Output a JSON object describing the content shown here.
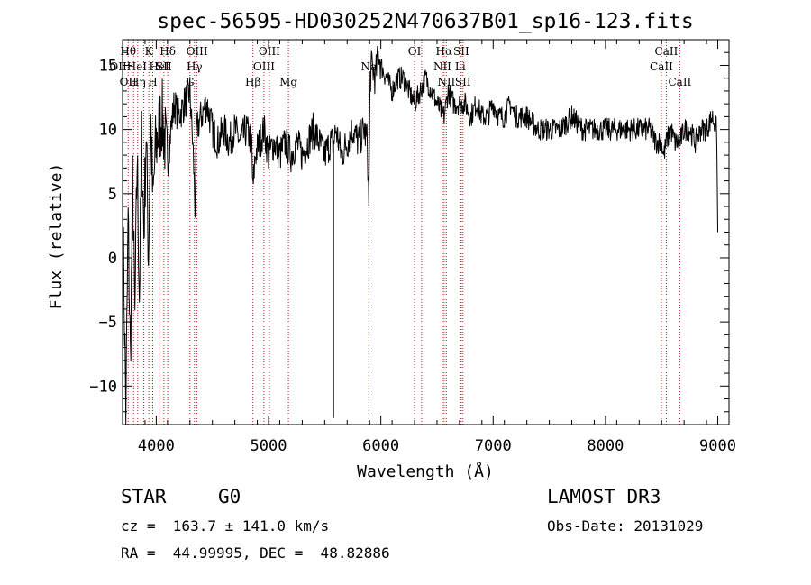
{
  "chart_data": {
    "type": "line",
    "title": "spec-56595-HD030252N470637B01_sp16-123.fits",
    "xlabel": "Wavelength (Å)",
    "ylabel": "Flux (relative)",
    "xlim": [
      3700,
      9100
    ],
    "ylim": [
      -13,
      17
    ],
    "xticks": [
      4000,
      5000,
      6000,
      7000,
      8000,
      9000
    ],
    "yticks": [
      -10,
      -5,
      0,
      5,
      10,
      15
    ],
    "grid": false,
    "line_color": "#000000",
    "marker_color": "#b22222",
    "series": [
      {
        "x": [
          3705,
          3730,
          3750,
          3770,
          3790,
          3810,
          3830,
          3850,
          3870,
          3890,
          3910,
          3930,
          3950,
          3970,
          3990,
          4020,
          4050,
          4080,
          4100,
          4130,
          4160,
          4200,
          4250,
          4300,
          4330,
          4345,
          4360,
          4400,
          4450,
          4500,
          4550,
          4600,
          4650,
          4700,
          4750,
          4800,
          4850,
          4861,
          4880,
          4920,
          4960,
          5000,
          5050,
          5100,
          5150,
          5200,
          5250,
          5300,
          5350,
          5400,
          5450,
          5500,
          5550,
          5580,
          5600,
          5650,
          5700,
          5750,
          5800,
          5850,
          5880,
          5893,
          5905,
          5920,
          5950,
          5980,
          6000,
          6050,
          6100,
          6150,
          6200,
          6250,
          6300,
          6350,
          6400,
          6450,
          6500,
          6563,
          6600,
          6650,
          6700,
          6750,
          6800,
          6850,
          6900,
          6950,
          7000,
          7050,
          7100,
          7150,
          7200,
          7300,
          7400,
          7500,
          7600,
          7700,
          7800,
          7900,
          8000,
          8100,
          8200,
          8300,
          8400,
          8450,
          8498,
          8520,
          8542,
          8580,
          8620,
          8662,
          8700,
          8750,
          8800,
          8850,
          8900,
          8950,
          8990,
          9000
        ],
        "y": [
          2,
          -12,
          3,
          -8,
          6,
          -5,
          8,
          -3,
          9,
          2,
          10,
          0,
          11,
          4,
          8,
          10,
          11,
          9,
          7,
          10,
          12,
          11,
          12,
          13,
          8,
          4,
          10,
          11,
          12,
          10,
          9,
          10,
          9,
          10,
          9,
          10,
          9,
          5,
          8,
          9,
          10,
          8,
          9,
          8,
          9,
          8,
          9,
          8,
          9,
          10,
          9,
          8,
          9,
          9,
          10,
          8,
          9,
          10,
          9,
          10,
          9,
          4,
          14,
          15,
          14,
          16,
          15,
          14,
          13,
          14,
          14,
          13,
          12,
          13,
          14,
          13,
          12,
          11,
          13,
          12,
          12,
          12,
          11,
          12,
          11,
          11,
          12,
          11,
          11,
          12,
          11,
          11,
          10,
          10,
          10,
          11,
          10,
          10,
          10,
          10,
          10,
          10,
          10,
          9,
          9,
          8,
          9,
          10,
          9,
          9,
          10,
          10,
          9,
          10,
          10,
          11,
          10,
          2
        ]
      }
    ],
    "spikes": [
      {
        "x": 5577,
        "y": -12.5
      }
    ],
    "line_markers": [
      {
        "x": 3750,
        "labels": [
          "Hθ",
          "OIIHeI",
          "OII"
        ]
      },
      {
        "x": 3798,
        "labels": []
      },
      {
        "x": 3835,
        "labels": [
          "",
          "",
          "Hη"
        ]
      },
      {
        "x": 3889,
        "labels": []
      },
      {
        "x": 3934,
        "labels": [
          "K"
        ]
      },
      {
        "x": 3969,
        "labels": [
          "",
          "",
          "H"
        ]
      },
      {
        "x": 4026,
        "labels": [
          "",
          "HeI"
        ]
      },
      {
        "x": 4068,
        "labels": [
          "",
          "SII"
        ]
      },
      {
        "x": 4102,
        "labels": [
          "Hδ"
        ]
      },
      {
        "x": 4300,
        "labels": [
          "",
          "",
          "G"
        ]
      },
      {
        "x": 4340,
        "labels": [
          "",
          "Hγ"
        ]
      },
      {
        "x": 4363,
        "labels": [
          "OIII"
        ]
      },
      {
        "x": 4861,
        "labels": [
          "",
          "",
          "Hβ"
        ]
      },
      {
        "x": 4959,
        "labels": [
          "",
          "OIII"
        ]
      },
      {
        "x": 5007,
        "labels": [
          "OIII"
        ]
      },
      {
        "x": 5177,
        "labels": [
          "",
          "",
          "Mg"
        ]
      },
      {
        "x": 5893,
        "labels": [
          "",
          "Na"
        ]
      },
      {
        "x": 6300,
        "labels": [
          "OI"
        ]
      },
      {
        "x": 6363,
        "labels": []
      },
      {
        "x": 6548,
        "labels": [
          "",
          "NII"
        ]
      },
      {
        "x": 6563,
        "labels": [
          "Hα"
        ]
      },
      {
        "x": 6583,
        "labels": [
          "",
          "",
          "NII"
        ]
      },
      {
        "x": 6707,
        "labels": [
          "",
          "Li"
        ]
      },
      {
        "x": 6716,
        "labels": [
          "SII"
        ]
      },
      {
        "x": 6731,
        "labels": [
          "",
          "",
          "SII"
        ]
      },
      {
        "x": 8498,
        "labels": [
          "",
          "CaII"
        ]
      },
      {
        "x": 8542,
        "labels": [
          "CaII"
        ]
      },
      {
        "x": 8662,
        "labels": [
          "",
          "",
          "CaII"
        ]
      }
    ]
  },
  "info": {
    "object_class": "STAR",
    "subclass": "G0",
    "survey": "LAMOST DR3",
    "velocity": "cz =  163.7 ± 141.0 km/s",
    "obs_date": "Obs-Date: 20131029",
    "coords": "RA =  44.99995, DEC =  48.82886"
  }
}
